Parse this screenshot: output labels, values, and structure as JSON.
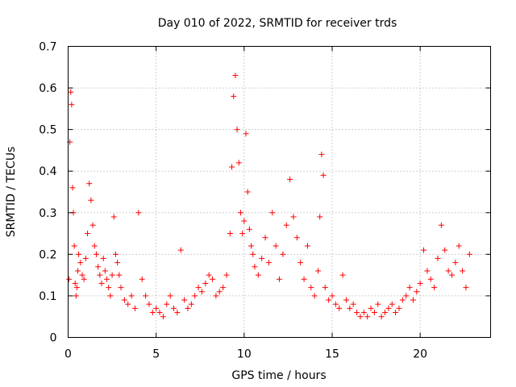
{
  "chart_data": {
    "type": "scatter",
    "title": "Day 010 of 2022, SRMTID for receiver trds",
    "xlabel": "GPS time / hours",
    "ylabel": "SRMTID / TECUs",
    "xlim": [
      0,
      24
    ],
    "ylim": [
      0,
      0.7
    ],
    "xticks": [
      0,
      5,
      10,
      15,
      20
    ],
    "yticks": [
      0,
      0.1,
      0.2,
      0.3,
      0.4,
      0.5,
      0.6,
      0.7
    ],
    "xtick_labels": [
      "0",
      "5",
      "10",
      "15",
      "20"
    ],
    "ytick_labels": [
      "0",
      "0.1",
      "0.2",
      "0.3",
      "0.4",
      "0.5",
      "0.6",
      "0.7"
    ],
    "grid": true,
    "marker": "+",
    "color": "#ff0000",
    "series": [
      {
        "name": "SRMTID",
        "x": [
          0.05,
          0.1,
          0.15,
          0.2,
          0.25,
          0.3,
          0.35,
          0.4,
          0.45,
          0.5,
          0.55,
          0.6,
          0.7,
          0.8,
          0.9,
          1.0,
          1.1,
          1.2,
          1.3,
          1.4,
          1.5,
          1.6,
          1.7,
          1.8,
          1.9,
          2.0,
          2.1,
          2.2,
          2.3,
          2.4,
          2.5,
          2.6,
          2.7,
          2.8,
          2.9,
          3.0,
          3.2,
          3.4,
          3.6,
          3.8,
          4.0,
          4.2,
          4.4,
          4.6,
          4.8,
          5.0,
          5.2,
          5.4,
          5.6,
          5.8,
          6.0,
          6.2,
          6.4,
          6.6,
          6.8,
          7.0,
          7.2,
          7.4,
          7.6,
          7.8,
          8.0,
          8.2,
          8.4,
          8.6,
          8.8,
          9.0,
          9.2,
          9.3,
          9.4,
          9.5,
          9.6,
          9.7,
          9.8,
          9.9,
          10.0,
          10.1,
          10.2,
          10.3,
          10.4,
          10.5,
          10.6,
          10.8,
          11.0,
          11.2,
          11.4,
          11.6,
          11.8,
          12.0,
          12.2,
          12.4,
          12.6,
          12.8,
          13.0,
          13.2,
          13.4,
          13.6,
          13.8,
          14.0,
          14.2,
          14.3,
          14.4,
          14.5,
          14.6,
          14.8,
          15.0,
          15.2,
          15.4,
          15.6,
          15.8,
          16.0,
          16.2,
          16.4,
          16.6,
          16.8,
          17.0,
          17.2,
          17.4,
          17.6,
          17.8,
          18.0,
          18.2,
          18.4,
          18.6,
          18.8,
          19.0,
          19.2,
          19.4,
          19.6,
          19.8,
          20.0,
          20.2,
          20.4,
          20.6,
          20.8,
          21.0,
          21.2,
          21.4,
          21.6,
          21.8,
          22.0,
          22.2,
          22.4,
          22.6,
          22.8
        ],
        "y": [
          0.14,
          0.47,
          0.59,
          0.56,
          0.36,
          0.3,
          0.22,
          0.13,
          0.1,
          0.12,
          0.16,
          0.2,
          0.18,
          0.15,
          0.14,
          0.19,
          0.25,
          0.37,
          0.33,
          0.27,
          0.22,
          0.2,
          0.17,
          0.15,
          0.13,
          0.19,
          0.16,
          0.14,
          0.12,
          0.1,
          0.15,
          0.29,
          0.2,
          0.18,
          0.15,
          0.12,
          0.09,
          0.08,
          0.1,
          0.07,
          0.3,
          0.14,
          0.1,
          0.08,
          0.06,
          0.07,
          0.06,
          0.05,
          0.08,
          0.1,
          0.07,
          0.06,
          0.21,
          0.09,
          0.07,
          0.08,
          0.1,
          0.12,
          0.11,
          0.13,
          0.15,
          0.14,
          0.1,
          0.11,
          0.12,
          0.15,
          0.25,
          0.41,
          0.58,
          0.63,
          0.5,
          0.42,
          0.3,
          0.25,
          0.28,
          0.49,
          0.35,
          0.26,
          0.22,
          0.2,
          0.17,
          0.15,
          0.19,
          0.24,
          0.18,
          0.3,
          0.22,
          0.14,
          0.2,
          0.27,
          0.38,
          0.29,
          0.24,
          0.18,
          0.14,
          0.22,
          0.12,
          0.1,
          0.16,
          0.29,
          0.44,
          0.39,
          0.12,
          0.09,
          0.1,
          0.08,
          0.07,
          0.15,
          0.09,
          0.07,
          0.08,
          0.06,
          0.05,
          0.06,
          0.05,
          0.07,
          0.06,
          0.08,
          0.05,
          0.06,
          0.07,
          0.08,
          0.06,
          0.07,
          0.09,
          0.1,
          0.12,
          0.09,
          0.11,
          0.13,
          0.21,
          0.16,
          0.14,
          0.12,
          0.19,
          0.27,
          0.21,
          0.16,
          0.15,
          0.18,
          0.22,
          0.16,
          0.12,
          0.2
        ]
      }
    ]
  }
}
